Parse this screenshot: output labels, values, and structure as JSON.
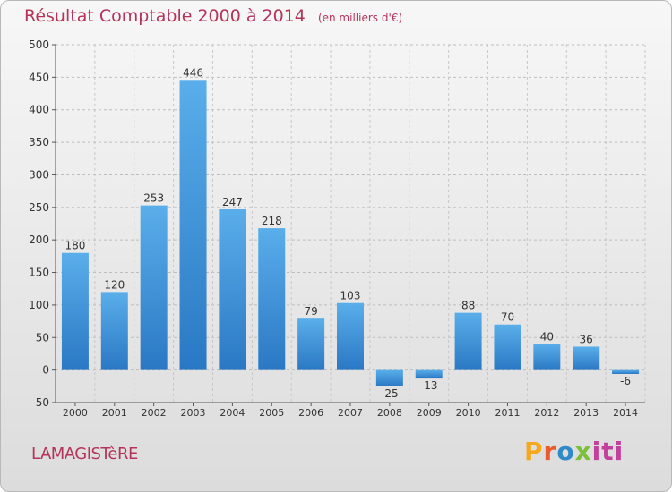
{
  "chart_data": {
    "type": "bar",
    "title": "Résultat Comptable 2000 à 2014",
    "subtitle": "(en milliers d'€)",
    "categories": [
      "2000",
      "2001",
      "2002",
      "2003",
      "2004",
      "2005",
      "2006",
      "2007",
      "2008",
      "2009",
      "2010",
      "2011",
      "2012",
      "2013",
      "2014"
    ],
    "values": [
      180,
      120,
      253,
      446,
      247,
      218,
      79,
      103,
      -25,
      -13,
      88,
      70,
      40,
      36,
      -6
    ],
    "ylim": [
      -50,
      500
    ],
    "yticks": [
      -50,
      0,
      50,
      100,
      150,
      200,
      250,
      300,
      350,
      400,
      450,
      500
    ],
    "xlabel": "",
    "ylabel": "",
    "grid": true,
    "bar_color": "#3a8fd8"
  },
  "commune": "LAMAGISTèRE",
  "brand": {
    "p": "P",
    "r": "r",
    "o": "o",
    "x": "x",
    "i": "iti"
  }
}
